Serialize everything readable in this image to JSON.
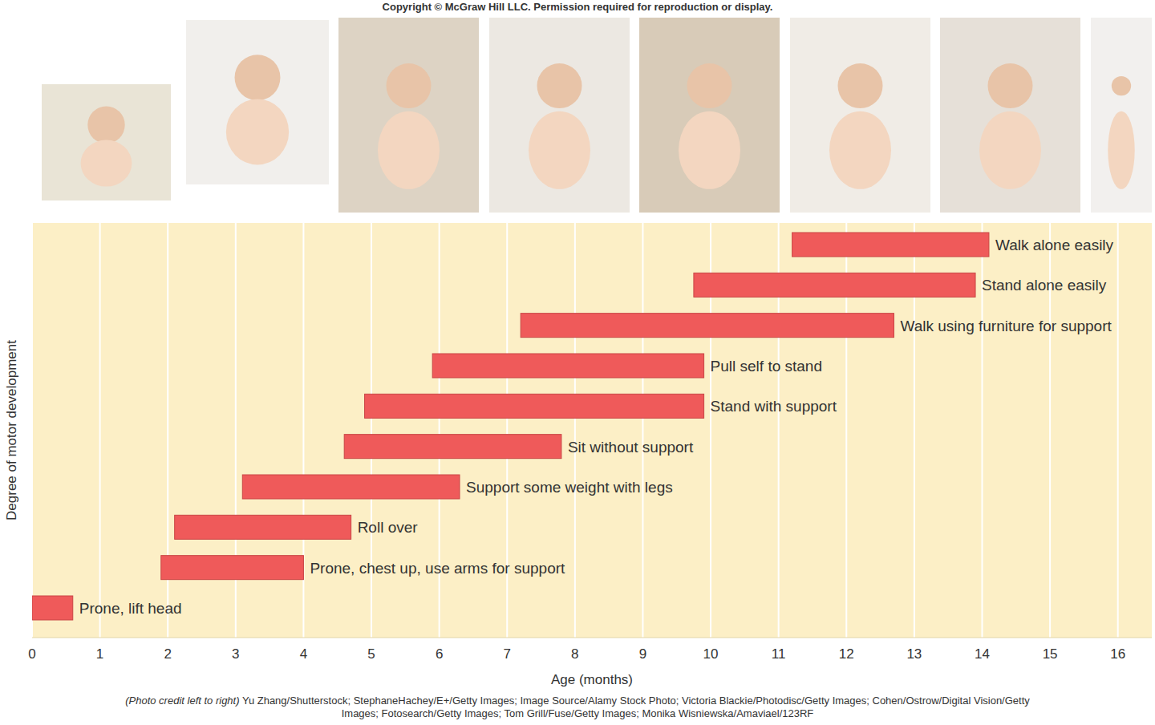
{
  "chart_data": {
    "type": "range_bar",
    "orientation": "horizontal",
    "x_label": "Age (months)",
    "y_label": "Degree of motor development",
    "annotations": [
      "Copyright © McGraw Hill LLC. Permission required for reproduction or display.",
      "(Photo credit left to right) Yu Zhang/Shutterstock; StephaneHachey/E+/Getty Images; Image Source/Alamy Stock Photo; Victoria Blackie/Photodisc/Getty Images; Cohen/Ostrow/Digital Vision/Getty Images; Fotosearch/Getty Images; Tom Grill/Fuse/Getty Images; Monika Wisniewska/Amaviael/123RF"
    ],
    "categories": [
      "Prone, lift head",
      "Prone, chest up, use arms for support",
      "Roll over",
      "Support some weight with legs",
      "Sit without support",
      "Stand with support",
      "Pull self to stand",
      "Walk using furniture for support",
      "Stand alone easily",
      "Walk alone easily"
    ],
    "start": [
      0,
      1.9,
      2.1,
      3.1,
      4.6,
      4.9,
      5.9,
      7.2,
      9.75,
      11.2
    ],
    "end": [
      0.6,
      4.0,
      4.7,
      6.3,
      7.8,
      9.9,
      9.9,
      12.7,
      13.9,
      14.1
    ],
    "color": "#ef5a5a",
    "xlim": [
      0,
      16.5
    ],
    "xticks": [
      0,
      1,
      2,
      3,
      4,
      5,
      6,
      7,
      8,
      9,
      10,
      11,
      12,
      13,
      14,
      15,
      16
    ],
    "grid": true,
    "tick_labels": "x"
  }
}
